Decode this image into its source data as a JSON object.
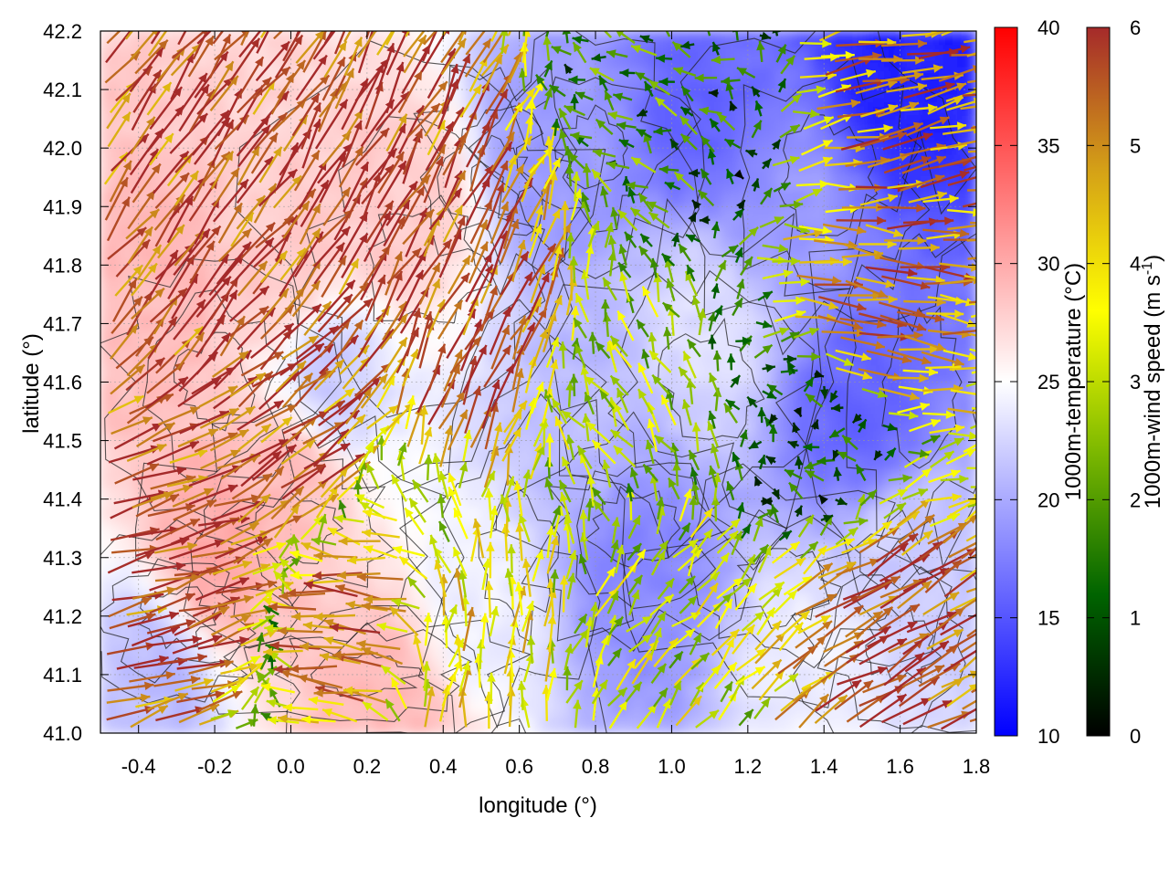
{
  "chart_data": {
    "type": "heatmap",
    "title": "",
    "xlabel": "longitude (°)",
    "ylabel": "latitude (°)",
    "xlim": [
      -0.5,
      1.8
    ],
    "ylim": [
      41.0,
      42.2
    ],
    "x_ticks": [
      "-0.4",
      "-0.2",
      "0.0",
      "0.2",
      "0.4",
      "0.6",
      "0.8",
      "1.0",
      "1.2",
      "1.4",
      "1.6",
      "1.8"
    ],
    "x_tick_values": [
      -0.4,
      -0.2,
      0.0,
      0.2,
      0.4,
      0.6,
      0.8,
      1.0,
      1.2,
      1.4,
      1.6,
      1.8
    ],
    "y_ticks": [
      "41.0",
      "41.1",
      "41.2",
      "41.3",
      "41.4",
      "41.5",
      "41.6",
      "41.7",
      "41.8",
      "41.9",
      "42.0",
      "42.1",
      "42.2"
    ],
    "y_tick_values": [
      41.0,
      41.1,
      41.2,
      41.3,
      41.4,
      41.5,
      41.6,
      41.7,
      41.8,
      41.9,
      42.0,
      42.1,
      42.2
    ],
    "grid": true,
    "overlays": [
      "terrain contour lines",
      "wind vector arrows"
    ],
    "temperature_colorbar": {
      "label": "1000m-temperature (°C)",
      "range": [
        10,
        40
      ],
      "ticks": [
        "10",
        "15",
        "20",
        "25",
        "30",
        "35",
        "40"
      ],
      "tick_values": [
        10,
        15,
        20,
        25,
        30,
        35,
        40
      ],
      "colors": [
        "#0000ff",
        "#ffffff",
        "#ff0000"
      ]
    },
    "wind_colorbar": {
      "label_main": "1000m-wind speed (m s",
      "label_sup": "-1",
      "label_end": ")",
      "range": [
        0,
        6
      ],
      "ticks": [
        "0",
        "1",
        "2",
        "3",
        "4",
        "5",
        "6"
      ],
      "tick_values": [
        0,
        1,
        2,
        3,
        4,
        5,
        6
      ],
      "colors": [
        "#000000",
        "#006400",
        "#7cb800",
        "#ffff00",
        "#d4a017",
        "#a52a2a"
      ]
    },
    "temperature_regions": [
      {
        "lon": -0.35,
        "lat": 41.75,
        "t": 29
      },
      {
        "lon": 0.0,
        "lat": 41.8,
        "t": 28
      },
      {
        "lon": 0.3,
        "lat": 41.9,
        "t": 28
      },
      {
        "lon": 0.0,
        "lat": 41.45,
        "t": 29
      },
      {
        "lon": -0.2,
        "lat": 41.3,
        "t": 30
      },
      {
        "lon": 0.25,
        "lat": 41.05,
        "t": 29
      },
      {
        "lon": -0.35,
        "lat": 41.1,
        "t": 21
      },
      {
        "lon": 0.1,
        "lat": 41.6,
        "t": 22
      },
      {
        "lon": 0.5,
        "lat": 41.25,
        "t": 24
      },
      {
        "lon": 0.75,
        "lat": 41.5,
        "t": 21
      },
      {
        "lon": 0.9,
        "lat": 41.3,
        "t": 18
      },
      {
        "lon": 1.1,
        "lat": 41.7,
        "t": 23
      },
      {
        "lon": 1.3,
        "lat": 41.9,
        "t": 19
      },
      {
        "lon": 1.5,
        "lat": 41.55,
        "t": 16
      },
      {
        "lon": 1.6,
        "lat": 42.15,
        "t": 12
      },
      {
        "lon": 1.1,
        "lat": 42.05,
        "t": 16
      },
      {
        "lon": 0.7,
        "lat": 42.0,
        "t": 19
      },
      {
        "lon": 1.6,
        "lat": 41.3,
        "t": 22
      },
      {
        "lon": 1.4,
        "lat": 41.1,
        "t": 24
      }
    ],
    "wind_regions": [
      {
        "lon": -0.2,
        "lat": 41.8,
        "u": 3.5,
        "v": 4.6
      },
      {
        "lon": 0.2,
        "lat": 41.9,
        "u": 3.0,
        "v": 5.0
      },
      {
        "lon": 0.45,
        "lat": 41.7,
        "u": 2.5,
        "v": 5.2
      },
      {
        "lon": -0.3,
        "lat": 41.3,
        "u": 5.5,
        "v": 1.5
      },
      {
        "lon": 0.0,
        "lat": 41.5,
        "u": 4.5,
        "v": 3.5
      },
      {
        "lon": 0.45,
        "lat": 41.1,
        "u": 0.5,
        "v": 4.0
      },
      {
        "lon": 0.2,
        "lat": 41.2,
        "u": -5.5,
        "v": 0.5
      },
      {
        "lon": 0.9,
        "lat": 41.5,
        "u": -1.5,
        "v": 2.5
      },
      {
        "lon": 1.0,
        "lat": 41.2,
        "u": 2.0,
        "v": 2.5
      },
      {
        "lon": 1.5,
        "lat": 41.2,
        "u": 5.0,
        "v": 3.0
      },
      {
        "lon": 1.5,
        "lat": 41.7,
        "u": 5.5,
        "v": -0.8
      },
      {
        "lon": 1.4,
        "lat": 41.5,
        "u": -1.0,
        "v": 0.3
      },
      {
        "lon": 1.0,
        "lat": 42.1,
        "u": -1.5,
        "v": 0.8
      },
      {
        "lon": 1.6,
        "lat": 42.05,
        "u": 5.0,
        "v": 1.0
      }
    ]
  }
}
